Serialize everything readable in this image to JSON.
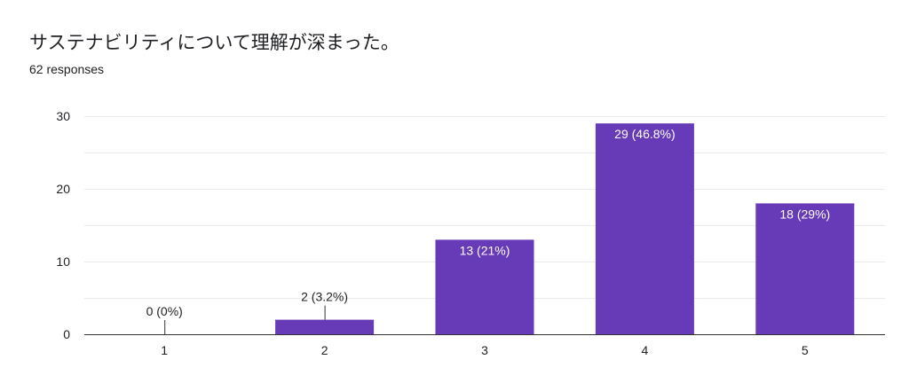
{
  "question": {
    "title": "サステナビリティについて理解が深まった。",
    "responses_label": "62 responses"
  },
  "colors": {
    "bar": "#673ab7",
    "grid": "#ebebeb",
    "axis": "#333333",
    "text": "#202124",
    "label_inside": "#ffffff"
  },
  "chart_data": {
    "type": "bar",
    "categories": [
      "1",
      "2",
      "3",
      "4",
      "5"
    ],
    "values": [
      0,
      2,
      13,
      29,
      18
    ],
    "data_labels": [
      "0 (0%)",
      "2 (3.2%)",
      "13 (21%)",
      "29 (46.8%)",
      "18 (29%)"
    ],
    "y_ticks": [
      "0",
      "10",
      "20",
      "30"
    ],
    "ylim": [
      0,
      30
    ],
    "grid": true,
    "legend": "none"
  }
}
